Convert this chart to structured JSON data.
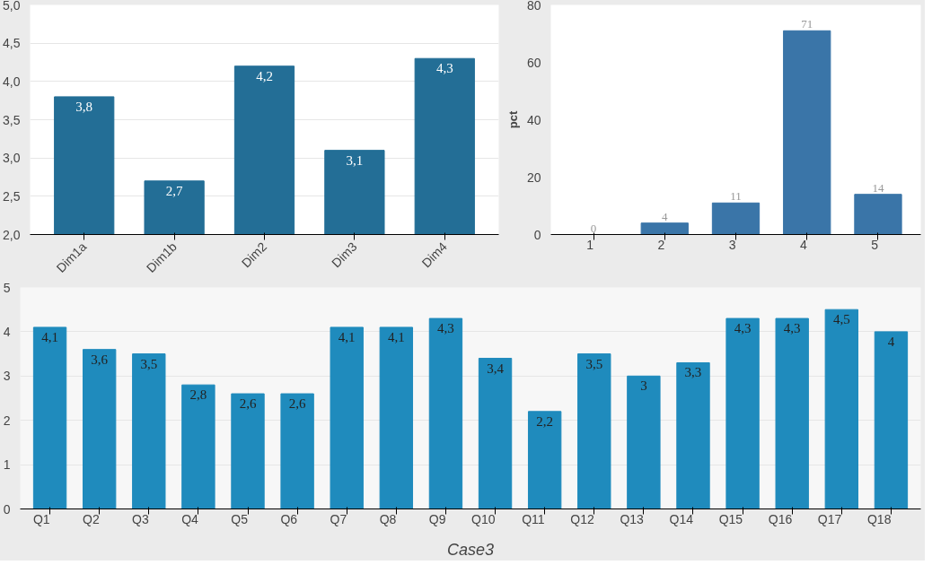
{
  "chart_data": [
    {
      "type": "bar",
      "categories": [
        "Dim1a",
        "Dim1b",
        "Dim2",
        "Dim3",
        "Dim4"
      ],
      "values": [
        3.8,
        2.7,
        4.2,
        3.1,
        4.3
      ],
      "color": "#236e96",
      "value_labels": [
        "3,8",
        "2,7",
        "4,2",
        "3,1",
        "4,3"
      ],
      "ylim": [
        2,
        5
      ],
      "yticks": [
        {
          "value": 2,
          "label": "2,0"
        },
        {
          "value": 2.5,
          "label": "2,5"
        },
        {
          "value": 3,
          "label": "3,0"
        },
        {
          "value": 3.5,
          "label": "3,5"
        },
        {
          "value": 4,
          "label": "4,0"
        },
        {
          "value": 4.5,
          "label": "4,5"
        },
        {
          "value": 5,
          "label": "5,0"
        }
      ],
      "grid": "y"
    },
    {
      "type": "bar",
      "categories": [
        "1",
        "2",
        "3",
        "4",
        "5"
      ],
      "values": [
        0,
        4,
        11,
        71,
        14
      ],
      "color": "#3a75a8",
      "ylabel": "pct",
      "data_labels": true,
      "ylim": [
        0,
        80
      ],
      "yticks": [
        0,
        20,
        40,
        60,
        80
      ],
      "grid": false
    },
    {
      "type": "bar",
      "categories": [
        "Q1",
        "Q2",
        "Q3",
        "Q4",
        "Q5",
        "Q6",
        "Q7",
        "Q8",
        "Q9",
        "Q10",
        "Q11",
        "Q12",
        "Q13",
        "Q14",
        "Q15",
        "Q16",
        "Q17",
        "Q18"
      ],
      "values": [
        4.1,
        3.6,
        3.5,
        2.8,
        2.6,
        2.6,
        4.1,
        4.1,
        4.3,
        3.4,
        2.2,
        3.5,
        3,
        3.3,
        4.3,
        4.3,
        4.5,
        4
      ],
      "color": "#1f8bbd",
      "value_labels": [
        "4,1",
        "3,6",
        "3,5",
        "2,8",
        "2,6",
        "2,6",
        "4,1",
        "4,1",
        "4,3",
        "3,4",
        "2,2",
        "3,5",
        "3",
        "3,3",
        "4,3",
        "4,3",
        "4,5",
        "4"
      ],
      "xlabel": "Case3",
      "ylim": [
        0,
        5
      ],
      "yticks": [
        0,
        1,
        2,
        3,
        4,
        5
      ],
      "grid": "y"
    }
  ]
}
